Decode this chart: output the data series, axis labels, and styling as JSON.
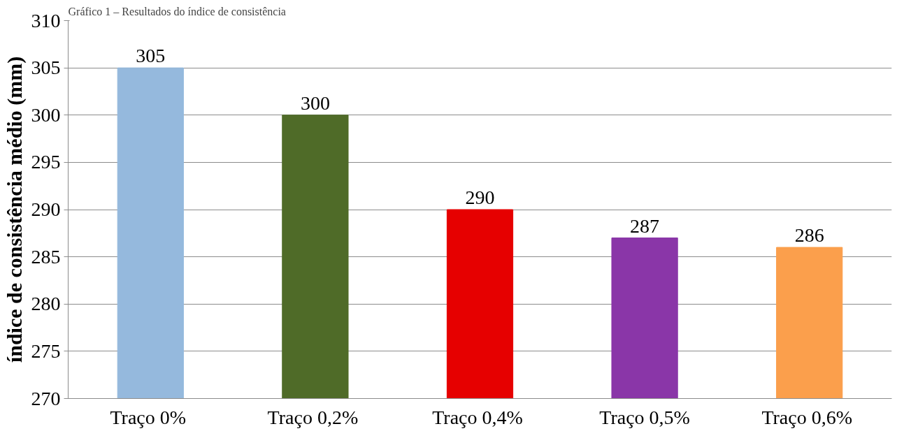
{
  "chart_data": {
    "type": "bar",
    "title": "Gráfico 1 – Resultados do índice de consistência",
    "ylabel": "índice de consistência médio (mm)",
    "categories": [
      "Traço  0%",
      "Traço  0,2%",
      "Traço  0,4%",
      "Traço 0,5%",
      "Traço  0,6%"
    ],
    "values": [
      305,
      300,
      290,
      287,
      286
    ],
    "colors": [
      "#95b9dd",
      "#4f6b28",
      "#e60000",
      "#8a36a8",
      "#fb9f4c"
    ],
    "ylim": [
      270,
      310
    ],
    "yticks": [
      270,
      275,
      280,
      285,
      290,
      295,
      300,
      305,
      310
    ],
    "grid": "y",
    "data_labels": true
  }
}
